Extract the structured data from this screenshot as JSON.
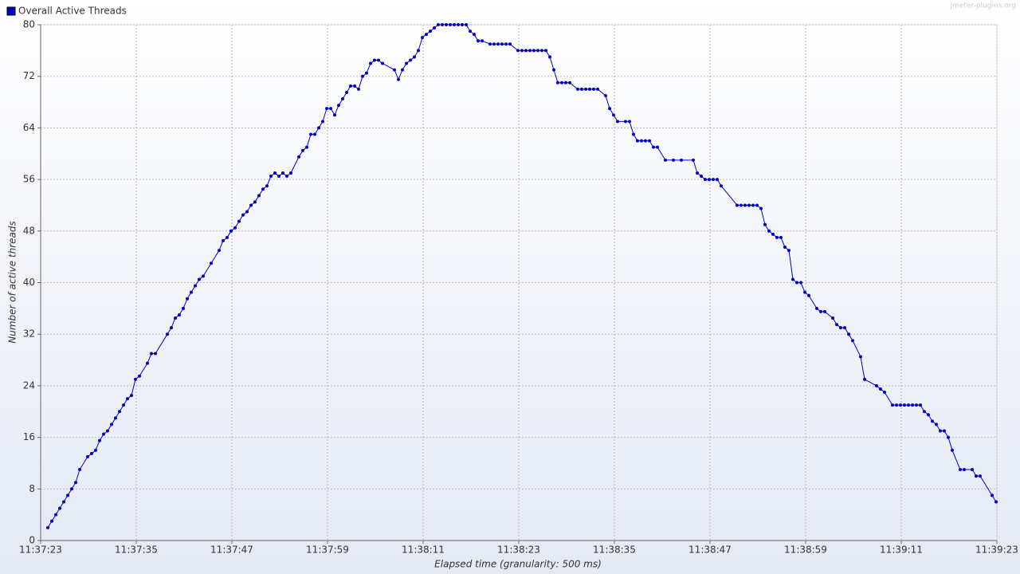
{
  "chart_data": {
    "type": "line",
    "title": "jmeter-plugins.org",
    "xlabel": "Elapsed time (granularity: 500 ms)",
    "ylabel": "Number of active threads",
    "x": [
      0.9,
      1.4,
      1.9,
      2.4,
      2.9,
      3.4,
      3.9,
      4.4,
      4.9,
      5.9,
      6.4,
      6.9,
      7.4,
      7.9,
      8.4,
      8.9,
      9.4,
      9.9,
      10.4,
      10.9,
      11.4,
      11.9,
      12.4,
      13.4,
      13.9,
      14.4,
      15.9,
      16.4,
      16.9,
      17.4,
      17.9,
      18.4,
      18.9,
      19.4,
      19.9,
      20.4,
      21.4,
      22.4,
      22.9,
      23.4,
      23.9,
      24.4,
      24.9,
      25.4,
      25.9,
      26.4,
      26.9,
      27.4,
      27.9,
      28.4,
      28.9,
      29.4,
      29.9,
      30.4,
      30.9,
      31.4,
      32.4,
      32.9,
      33.4,
      33.9,
      34.4,
      34.9,
      35.4,
      35.9,
      36.4,
      36.9,
      37.4,
      37.9,
      38.4,
      38.9,
      39.4,
      39.9,
      40.4,
      40.9,
      41.4,
      41.9,
      42.4,
      42.9,
      44.4,
      44.9,
      45.4,
      45.9,
      46.4,
      46.9,
      47.4,
      47.9,
      48.4,
      48.9,
      49.4,
      49.9,
      50.4,
      50.9,
      51.4,
      51.9,
      52.4,
      52.9,
      53.4,
      53.9,
      54.4,
      54.9,
      55.4,
      56.4,
      56.9,
      57.4,
      57.9,
      58.4,
      58.9,
      59.9,
      60.4,
      60.9,
      61.4,
      61.9,
      62.4,
      62.9,
      63.4,
      63.9,
      64.4,
      64.9,
      65.4,
      65.9,
      66.4,
      67.4,
      67.9,
      68.4,
      68.9,
      69.4,
      69.9,
      70.9,
      71.4,
      71.9,
      72.4,
      73.4,
      73.9,
      74.4,
      74.9,
      75.4,
      75.9,
      76.4,
      76.9,
      77.4,
      78.4,
      79.4,
      80.4,
      81.9,
      82.4,
      82.9,
      83.4,
      83.9,
      84.4,
      84.9,
      85.4,
      87.4,
      87.9,
      88.4,
      88.9,
      89.4,
      89.9,
      90.4,
      90.9,
      91.4,
      91.9,
      92.4,
      92.9,
      93.4,
      93.9,
      94.4,
      94.9,
      95.4,
      95.9,
      96.4,
      97.4,
      97.9,
      98.4,
      99.4,
      99.9,
      100.4,
      100.9,
      101.4,
      101.9,
      102.9,
      103.4,
      104.9,
      105.4,
      105.9,
      106.9,
      107.4,
      107.9,
      108.4,
      108.9,
      109.4,
      109.9,
      110.4,
      110.9,
      111.4,
      111.9,
      112.4,
      112.9,
      113.4,
      113.9,
      114.4,
      115.4,
      115.9,
      116.9,
      117.4,
      117.9,
      119.4,
      119.9
    ],
    "series": [
      {
        "name": "Overall Active Threads",
        "color": "#0000cc",
        "values": [
          2,
          3,
          4,
          5,
          6,
          7,
          8,
          9,
          11,
          13,
          13.5,
          14,
          15.5,
          16.5,
          17,
          18,
          19,
          20,
          21,
          22,
          22.5,
          25,
          25.5,
          27.5,
          29,
          29,
          32,
          33,
          34.5,
          35,
          36,
          37.5,
          38.5,
          39.5,
          40.5,
          41,
          43,
          45,
          46.5,
          47,
          48,
          48.5,
          49.5,
          50.5,
          51,
          52,
          52.5,
          53.5,
          54.5,
          55,
          56.5,
          57,
          56.5,
          57,
          56.5,
          57,
          59.5,
          60.5,
          61,
          63,
          63,
          64,
          65,
          67,
          67,
          66,
          67.5,
          68.5,
          69.5,
          70.5,
          70.5,
          70,
          72,
          72.5,
          74,
          74.5,
          74.5,
          74,
          73,
          71.5,
          73,
          74,
          74.5,
          75,
          76,
          78,
          78.5,
          79,
          79.5,
          80,
          80,
          80,
          80,
          80,
          80,
          80,
          80,
          79,
          78.5,
          77.5,
          77.5,
          77,
          77,
          77,
          77,
          77,
          77,
          76,
          76,
          76,
          76,
          76,
          76,
          76,
          76,
          75,
          73,
          71,
          71,
          71,
          71,
          70,
          70,
          70,
          70,
          70,
          70,
          69,
          67,
          66,
          65,
          65,
          65,
          63,
          62,
          62,
          62,
          62,
          61,
          61,
          59,
          59,
          59,
          59,
          57,
          56.5,
          56,
          56,
          56,
          56,
          55,
          52,
          52,
          52,
          52,
          52,
          52,
          51.5,
          49,
          48,
          47.5,
          47,
          47,
          45.5,
          45,
          40.5,
          40,
          40,
          38.5,
          38,
          36,
          35.5,
          35.5,
          34.5,
          33.5,
          33,
          33,
          32,
          31,
          28.5,
          25,
          24,
          23.5,
          23,
          21,
          21,
          21,
          21,
          21,
          21,
          21,
          21,
          20,
          19.5,
          18.5,
          18,
          17,
          17,
          16,
          14,
          11,
          11,
          11,
          10,
          10,
          7,
          6
        ]
      }
    ],
    "xlim": [
      0,
      120
    ],
    "xticks": [
      {
        "value": 0,
        "label": "11:37:23"
      },
      {
        "value": 12,
        "label": "11:37:35"
      },
      {
        "value": 24,
        "label": "11:37:47"
      },
      {
        "value": 36,
        "label": "11:37:59"
      },
      {
        "value": 48,
        "label": "11:38:11"
      },
      {
        "value": 60,
        "label": "11:38:23"
      },
      {
        "value": 72,
        "label": "11:38:35"
      },
      {
        "value": 84,
        "label": "11:38:47"
      },
      {
        "value": 96,
        "label": "11:38:59"
      },
      {
        "value": 108,
        "label": "11:39:11"
      },
      {
        "value": 120,
        "label": "11:39:23"
      }
    ],
    "ylim": [
      0,
      80
    ],
    "yticks": [
      0,
      8,
      16,
      24,
      32,
      40,
      48,
      56,
      64,
      72,
      80
    ],
    "grid": true
  }
}
